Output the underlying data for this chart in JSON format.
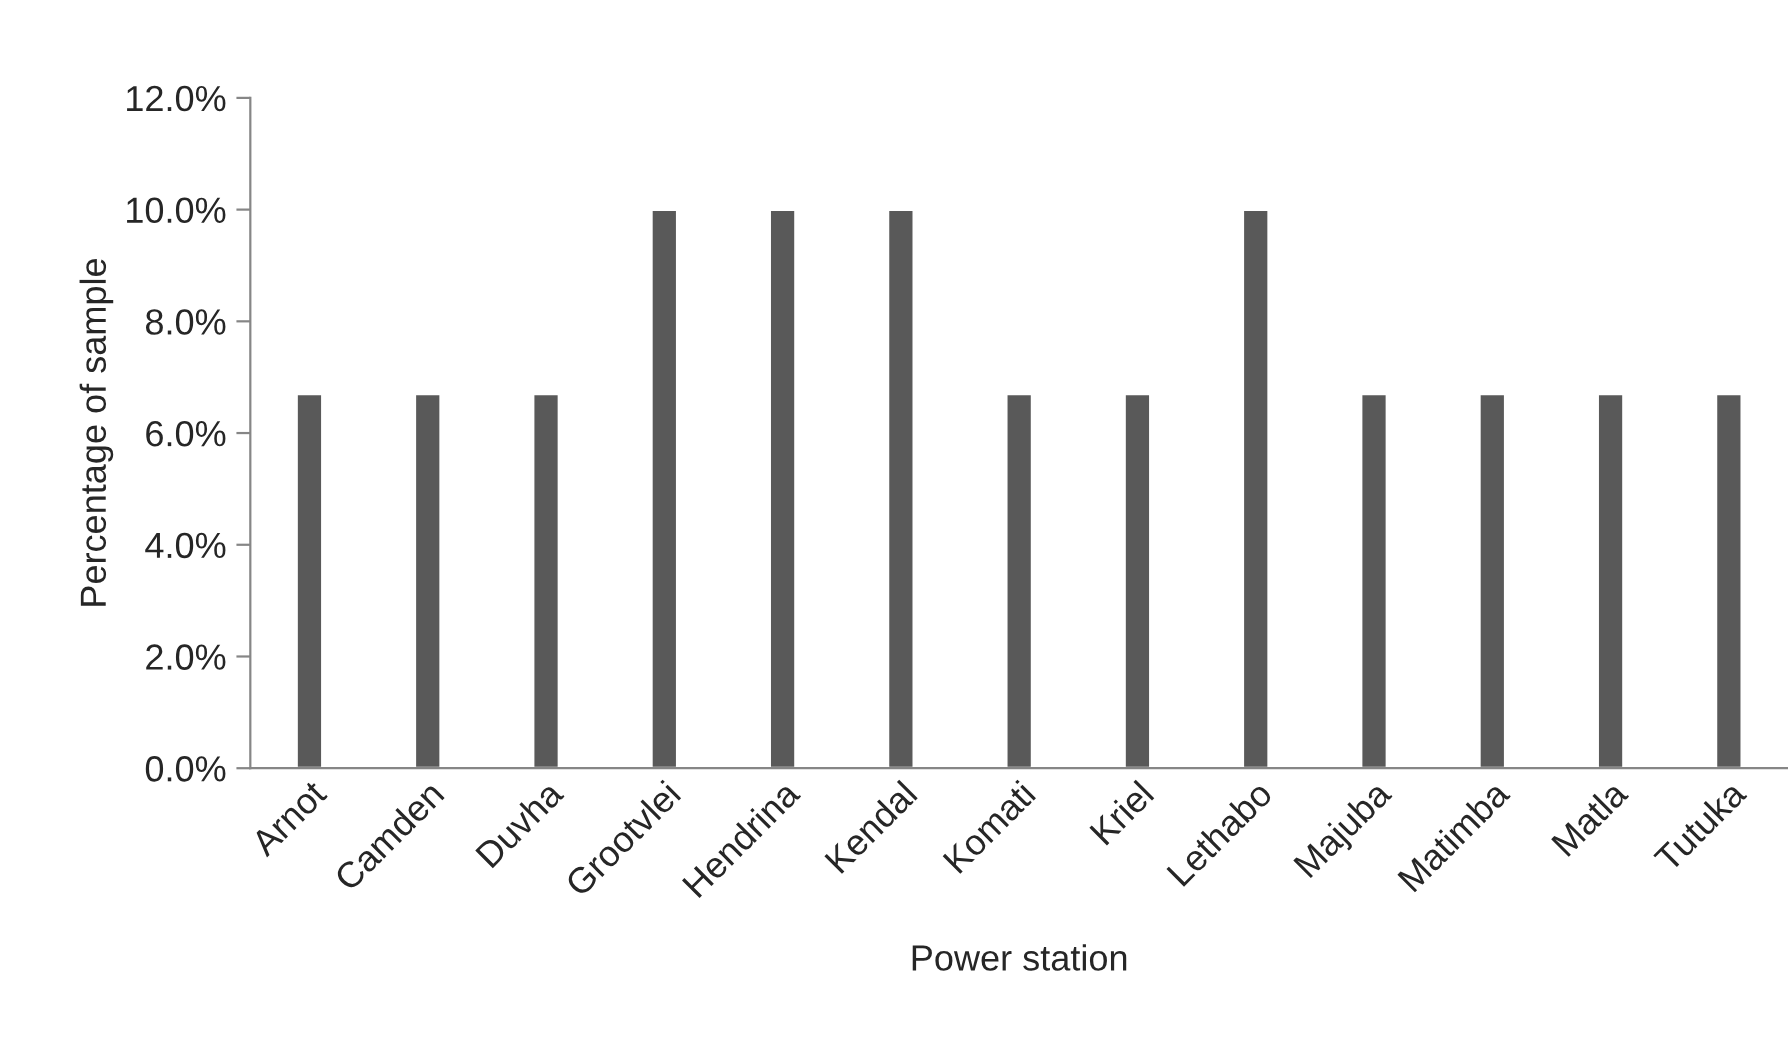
{
  "chart_data": {
    "type": "bar",
    "xlabel": "Power station",
    "ylabel": "Percentage of sample",
    "categories": [
      "Arnot",
      "Camden",
      "Duvha",
      "Grootvlei",
      "Hendrina",
      "Kendal",
      "Komati",
      "Kriel",
      "Lethabo",
      "Majuba",
      "Matimba",
      "Matla",
      "Tutuka"
    ],
    "values": [
      6.7,
      6.7,
      6.7,
      10,
      10,
      10,
      6.7,
      6.7,
      10,
      6.7,
      6.7,
      6.7,
      6.7
    ],
    "color": "#595959",
    "ylim": [
      0,
      12
    ],
    "yticks": [
      {
        "value": 0,
        "label": "0.0%"
      },
      {
        "value": 2,
        "label": "2.0%"
      },
      {
        "value": 4,
        "label": "4.0%"
      },
      {
        "value": 6,
        "label": "6.0%"
      },
      {
        "value": 8,
        "label": "8.0%"
      },
      {
        "value": 10,
        "label": "10.0%"
      },
      {
        "value": 12,
        "label": "12.0%"
      }
    ],
    "grid": false,
    "legend": false
  }
}
